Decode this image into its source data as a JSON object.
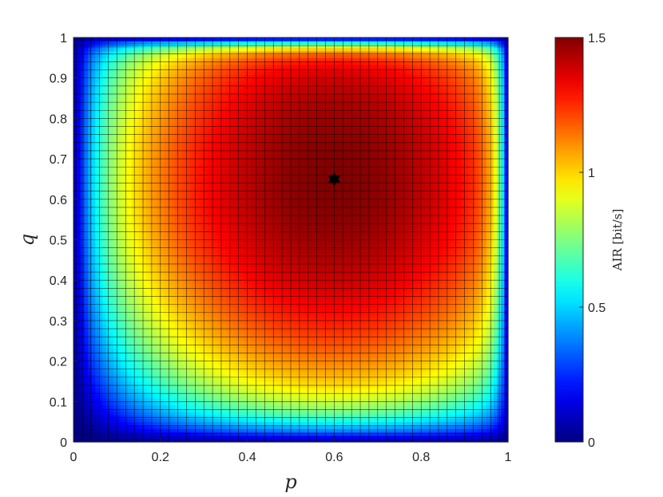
{
  "chart_data": {
    "type": "heatmap",
    "title": "",
    "xlabel": "p",
    "ylabel": "q",
    "xlim": [
      0,
      1
    ],
    "ylim": [
      0,
      1
    ],
    "xticks": [
      0,
      0.2,
      0.4,
      0.6,
      0.8,
      1
    ],
    "xtick_labels": [
      "0",
      "0.2",
      "0.4",
      "0.6",
      "0.8",
      "1"
    ],
    "yticks": [
      0,
      0.1,
      0.2,
      0.3,
      0.4,
      0.5,
      0.6,
      0.7,
      0.8,
      0.9,
      1
    ],
    "ytick_labels": [
      "0",
      "0.1",
      "0.2",
      "0.3",
      "0.4",
      "0.5",
      "0.6",
      "0.7",
      "0.8",
      "0.9",
      "1"
    ],
    "grid_step": 0.02,
    "colormap": "jet",
    "colorbar": {
      "label": "AIR [bit/s]",
      "range": [
        0,
        1.5
      ],
      "ticks": [
        0,
        0.5,
        1,
        1.5
      ],
      "tick_labels": [
        "0",
        "0.5",
        "1",
        "1.5"
      ]
    },
    "peak": {
      "p": 0.6,
      "q": 0.65,
      "value": 1.5,
      "marker": "star",
      "color": "#000000"
    }
  }
}
